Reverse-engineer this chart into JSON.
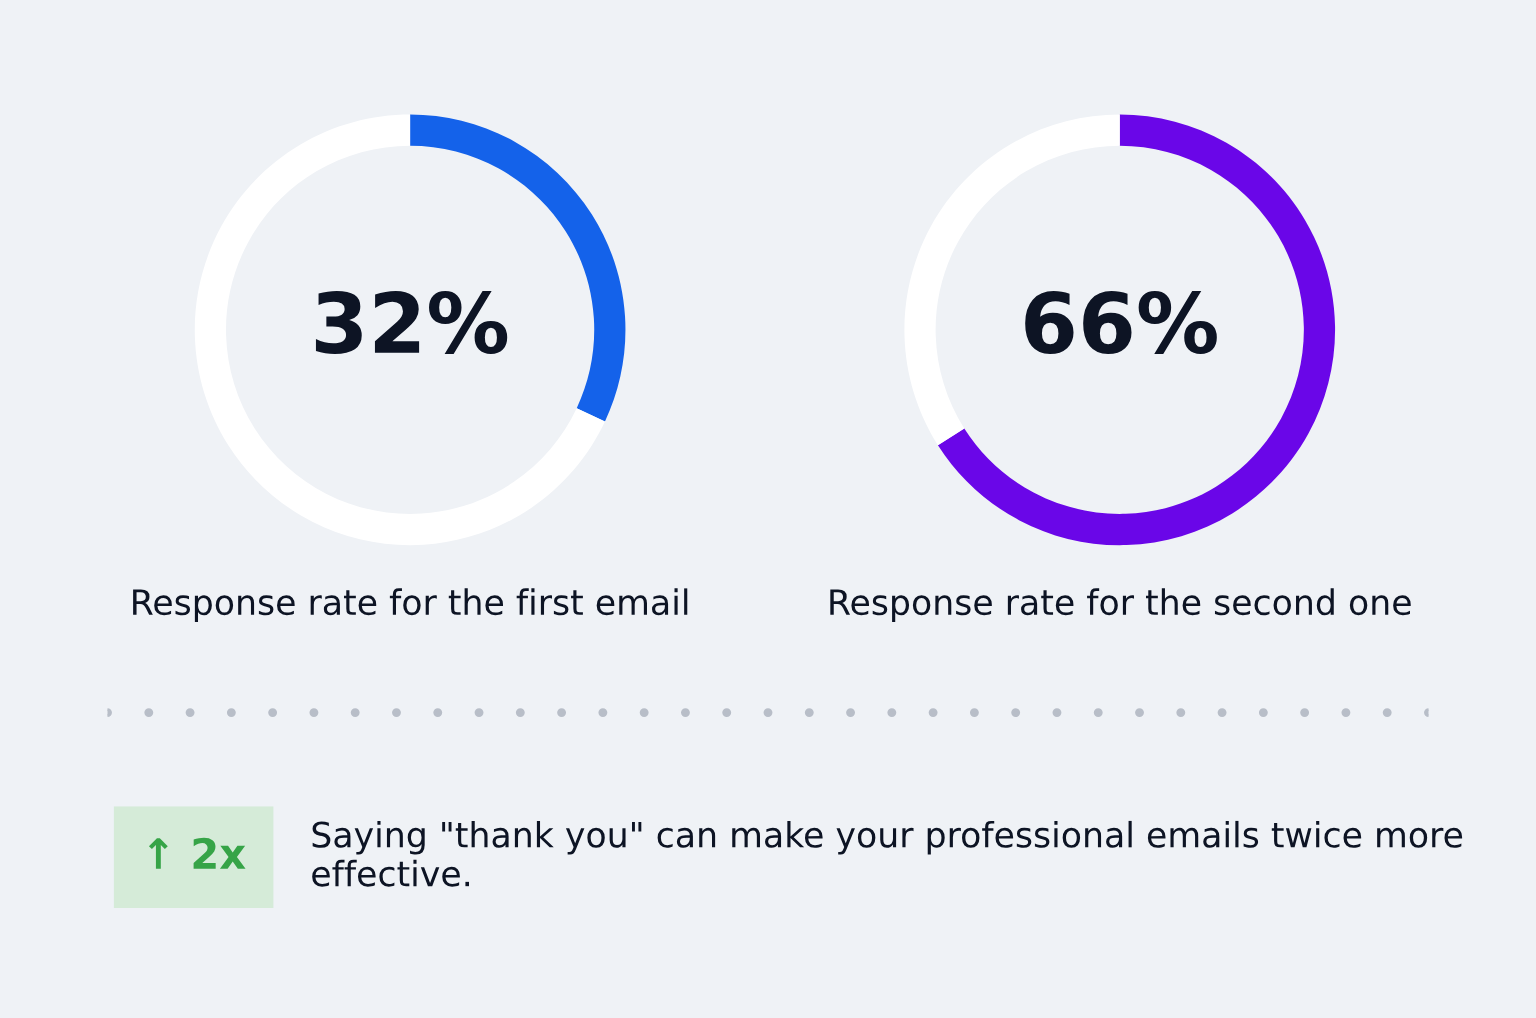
{
  "chart_data": [
    {
      "type": "donut",
      "categories": [
        null,
        null
      ],
      "values": [
        32,
        68
      ],
      "colors": [
        "#1462ea",
        "#ffffff"
      ],
      "value_labels": [
        "32%",
        null
      ],
      "xlabel": "Response rate for the first email"
    },
    {
      "type": "donut",
      "categories": [
        null,
        null
      ],
      "values": [
        66,
        34
      ],
      "colors": [
        "#6a06e8",
        "#ffffff"
      ],
      "value_labels": [
        "66%",
        null
      ],
      "xlabel": "Response rate for the second one"
    },
    {
      "type": "other",
      "annotations": [
        "↑ 2x",
        "Saying \"thank you\" can make your professional emails twice more effective."
      ]
    }
  ]
}
